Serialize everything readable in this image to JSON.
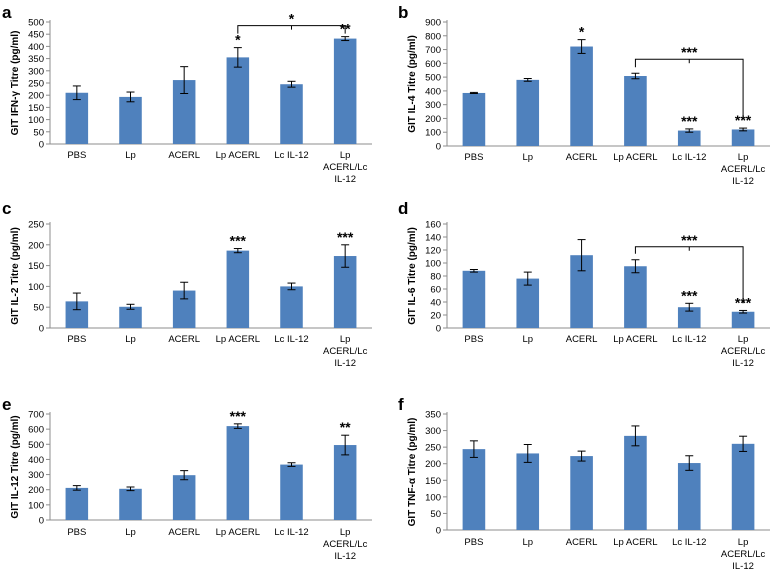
{
  "colors": {
    "bar": "#4f81bd",
    "axis": "#8c8c8c",
    "text": "#000000"
  },
  "chart_data": [
    {
      "type": "bar",
      "letter": "a",
      "ylabel": "GIT IFN-γ Titre (pg/ml)",
      "ylim": [
        0,
        500
      ],
      "yticks": [
        0,
        50,
        100,
        150,
        200,
        250,
        300,
        350,
        400,
        450,
        500
      ],
      "categories": [
        [
          "PBS"
        ],
        [
          "Lp"
        ],
        [
          "ACERL"
        ],
        [
          "Lp ACERL"
        ],
        [
          "Lc IL-12"
        ],
        [
          "Lp",
          "ACERL/Lc",
          "IL-12"
        ]
      ],
      "values": [
        210,
        193,
        262,
        355,
        245,
        432
      ],
      "errors": [
        28,
        20,
        55,
        40,
        12,
        8
      ],
      "stars": [
        "",
        "",
        "",
        "*",
        "",
        "**"
      ],
      "brackets": [
        {
          "from": 3,
          "to": 5,
          "label": "*",
          "level": 485
        }
      ]
    },
    {
      "type": "bar",
      "letter": "b",
      "ylabel": "GIT IL-4 Titre (pg/ml)",
      "ylim": [
        0,
        900
      ],
      "yticks": [
        0,
        100,
        200,
        300,
        400,
        500,
        600,
        700,
        800,
        900
      ],
      "categories": [
        [
          "PBS"
        ],
        [
          "Lp"
        ],
        [
          "ACERL"
        ],
        [
          "Lp ACERL"
        ],
        [
          "Lc IL-12"
        ],
        [
          "Lp",
          "ACERL/Lc",
          "IL-12"
        ]
      ],
      "values": [
        385,
        480,
        722,
        508,
        112,
        120
      ],
      "errors": [
        4,
        10,
        50,
        20,
        12,
        10
      ],
      "stars": [
        "",
        "",
        "*",
        "",
        "***",
        "***"
      ],
      "brackets": [
        {
          "from": 3,
          "to": 5,
          "label": "***",
          "level": 630,
          "drop_to": 200
        }
      ]
    },
    {
      "type": "bar",
      "letter": "c",
      "ylabel": "GIT IL-2 Titre (pg/ml)",
      "ylim": [
        0,
        250
      ],
      "yticks": [
        0,
        50,
        100,
        150,
        200,
        250
      ],
      "categories": [
        [
          "PBS"
        ],
        [
          "Lp"
        ],
        [
          "ACERL"
        ],
        [
          "Lp ACERL"
        ],
        [
          "Lc IL-12"
        ],
        [
          "Lp",
          "ACERL/Lc",
          "IL-12"
        ]
      ],
      "values": [
        64,
        51,
        90,
        186,
        100,
        173
      ],
      "errors": [
        20,
        6,
        20,
        5,
        8,
        27
      ],
      "stars": [
        "",
        "",
        "",
        "***",
        "",
        "***"
      ],
      "brackets": []
    },
    {
      "type": "bar",
      "letter": "d",
      "ylabel": "GIT IL-6 Titre (pg/ml)",
      "ylim": [
        0,
        160
      ],
      "yticks": [
        0,
        20,
        40,
        60,
        80,
        100,
        120,
        140,
        160
      ],
      "categories": [
        [
          "PBS"
        ],
        [
          "Lp"
        ],
        [
          "ACERL"
        ],
        [
          "Lp ACERL"
        ],
        [
          "Lc IL-12"
        ],
        [
          "Lp",
          "ACERL/Lc",
          "IL-12"
        ]
      ],
      "values": [
        88,
        76,
        112,
        95,
        32,
        25
      ],
      "errors": [
        2,
        10,
        24,
        10,
        6,
        2
      ],
      "stars": [
        "",
        "",
        "",
        "",
        "***",
        "***"
      ],
      "brackets": [
        {
          "from": 3,
          "to": 5,
          "label": "***",
          "level": 125,
          "drop_to": 38
        }
      ]
    },
    {
      "type": "bar",
      "letter": "e",
      "ylabel": "GIT IL-12 Titre (pg/ml)",
      "ylim": [
        0,
        700
      ],
      "yticks": [
        0,
        100,
        200,
        300,
        400,
        500,
        600,
        700
      ],
      "categories": [
        [
          "PBS"
        ],
        [
          "Lp"
        ],
        [
          "ACERL"
        ],
        [
          "Lp ACERL"
        ],
        [
          "Lc IL-12"
        ],
        [
          "Lp",
          "ACERL/Lc",
          "IL-12"
        ]
      ],
      "values": [
        212,
        206,
        296,
        620,
        366,
        495
      ],
      "errors": [
        15,
        12,
        30,
        15,
        12,
        65
      ],
      "stars": [
        "",
        "",
        "",
        "***",
        "",
        "**"
      ],
      "brackets": []
    },
    {
      "type": "bar",
      "letter": "f",
      "ylabel": "GIT TNF-α Titre (pg/ml)",
      "ylim": [
        0,
        350
      ],
      "yticks": [
        0,
        50,
        100,
        150,
        200,
        250,
        300,
        350
      ],
      "categories": [
        [
          "PBS"
        ],
        [
          "Lp"
        ],
        [
          "ACERL"
        ],
        [
          "Lp ACERL"
        ],
        [
          "Lc IL-12"
        ],
        [
          "Lp",
          "ACERL/Lc",
          "IL-12"
        ]
      ],
      "values": [
        244,
        231,
        223,
        284,
        202,
        260
      ],
      "errors": [
        25,
        27,
        15,
        30,
        22,
        23
      ],
      "stars": [
        "",
        "",
        "",
        "",
        "",
        ""
      ],
      "brackets": []
    }
  ]
}
